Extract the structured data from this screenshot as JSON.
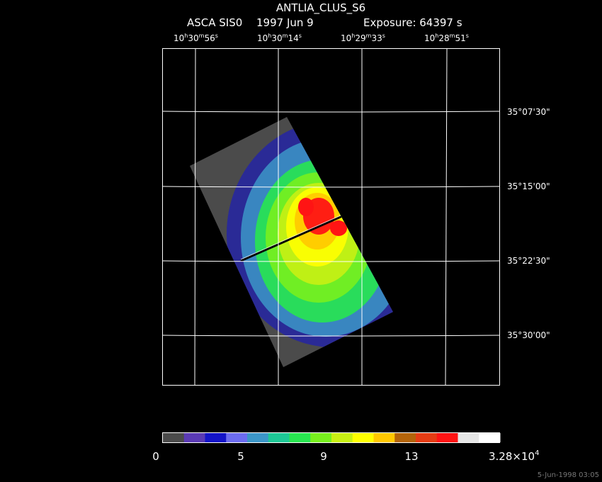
{
  "header": {
    "title": "ANTLIA_CLUS_S6",
    "instrument": "ASCA SIS0",
    "date": "1997 Jun  9",
    "exposure": "Exposure: 64397 s"
  },
  "ra_ticks": [
    {
      "h": "10",
      "m": "30",
      "s": "56"
    },
    {
      "h": "10",
      "m": "30",
      "s": "14"
    },
    {
      "h": "10",
      "m": "29",
      "s": "33"
    },
    {
      "h": "10",
      "m": "28",
      "s": "51"
    }
  ],
  "dec_ticks": [
    "35°07'30\"",
    "35°15'00\"",
    "35°22'30\"",
    "35°30'00\""
  ],
  "colorbar": {
    "colors": [
      "#4b4b4b",
      "#5a3ab4",
      "#1414c8",
      "#6c6cf0",
      "#3c96c8",
      "#1ec896",
      "#28e650",
      "#78f01e",
      "#c8f014",
      "#ffff00",
      "#ffc800",
      "#b4640a",
      "#e63c14",
      "#ff1414",
      "#e6e6e6",
      "#ffffff"
    ],
    "labels": [
      "0",
      "5",
      "9",
      "13"
    ],
    "max_label_base": "3.28×10",
    "max_label_exp": "4"
  },
  "footer": {
    "timestamp": "5-Jun-1998 03:05"
  }
}
